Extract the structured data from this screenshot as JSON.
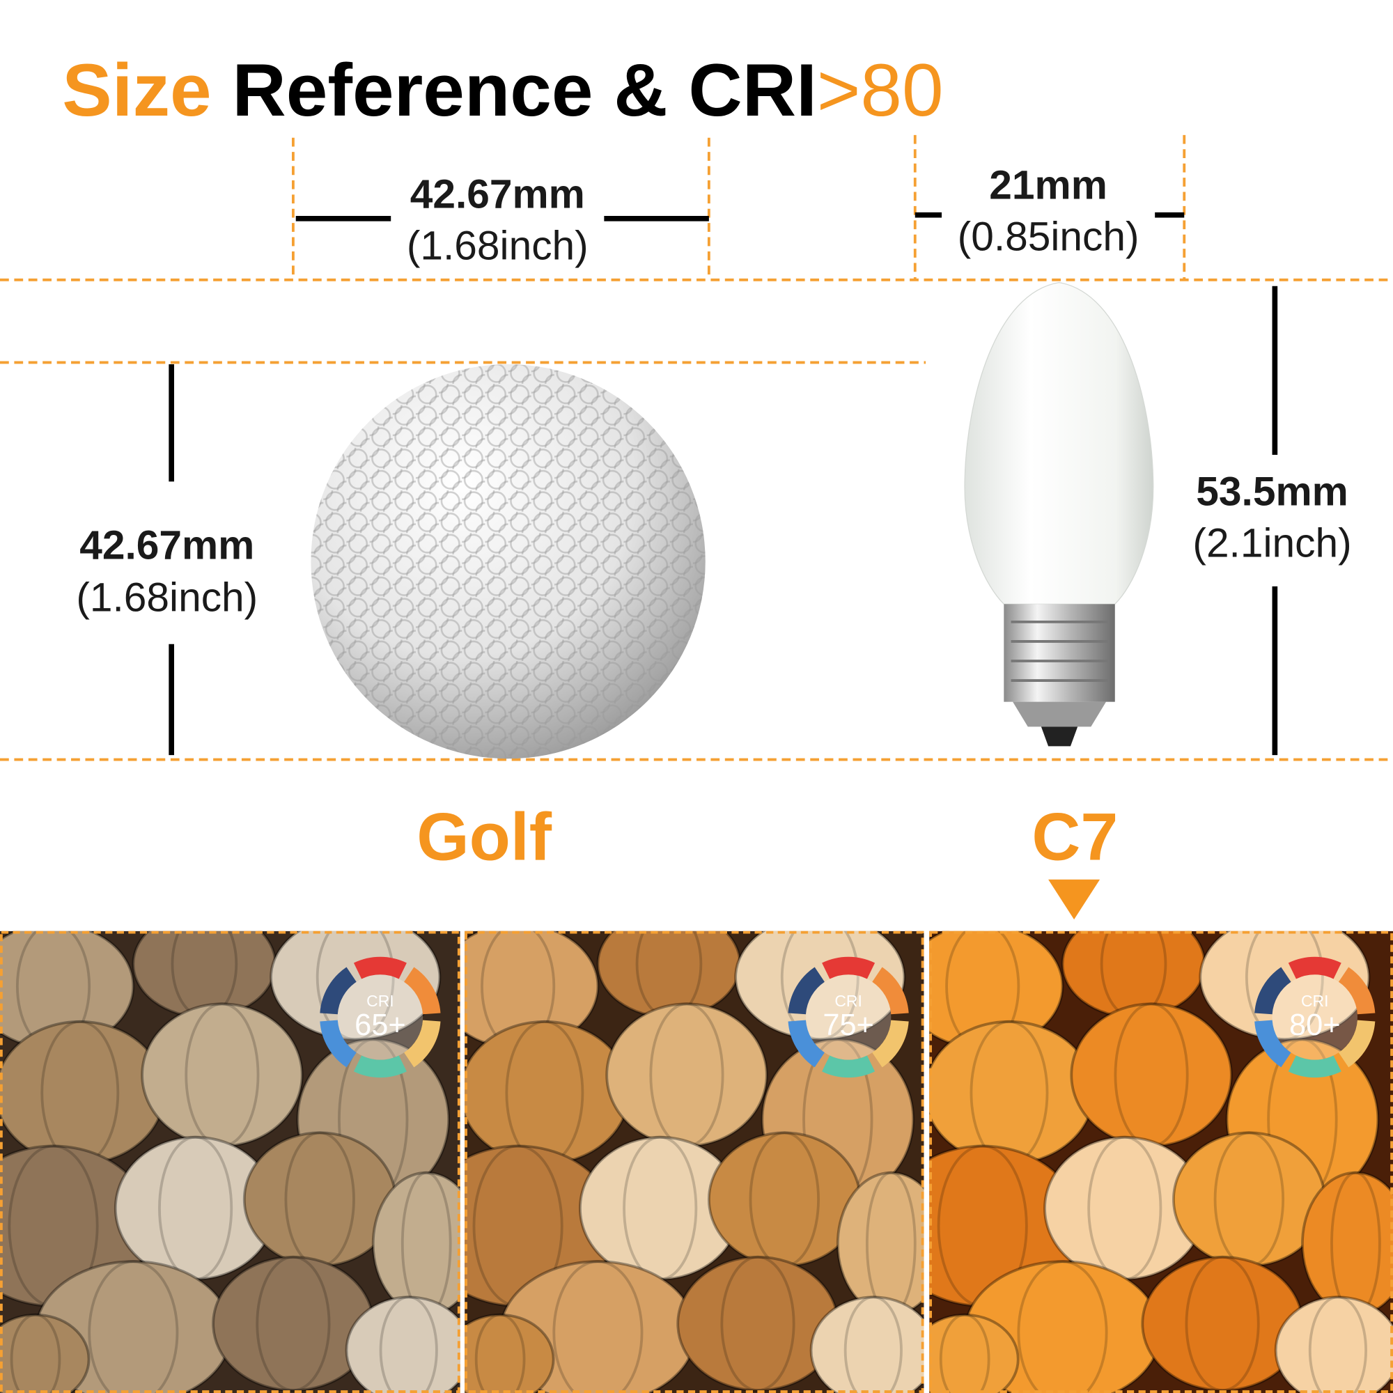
{
  "header": {
    "title": {
      "highlight": "Size",
      "main": "Reference & CRI",
      "accent": ">80"
    }
  },
  "dimensions": {
    "golf_width": {
      "mm": "42.67mm",
      "inch": "(1.68inch)"
    },
    "golf_height": {
      "mm": "42.67mm",
      "inch": "(1.68inch)"
    },
    "bulb_width": {
      "mm": "21mm",
      "inch": "(0.85inch)"
    },
    "bulb_height": {
      "mm": "53.5mm",
      "inch": "(2.1inch)"
    }
  },
  "labels": {
    "golf": "Golf",
    "bulb": "C7"
  },
  "panels": [
    {
      "cri_label": "CRI",
      "cri_value": "65+"
    },
    {
      "cri_label": "CRI",
      "cri_value": "75+"
    },
    {
      "cri_label": "CRI",
      "cri_value": "80+"
    }
  ]
}
